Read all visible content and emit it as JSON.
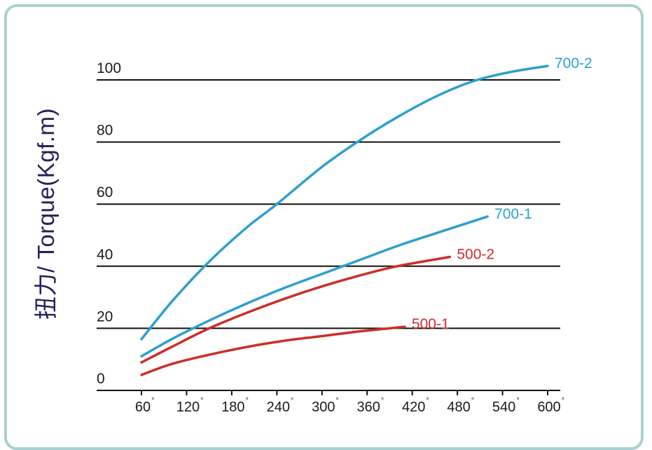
{
  "chart_data": {
    "type": "line",
    "ylabel": "扭力/ Torque(Kgf.m)",
    "xlabel": "",
    "degree_mark": "°",
    "xlim": [
      60,
      600
    ],
    "ylim": [
      0,
      100
    ],
    "x_ticks": [
      "60",
      "120",
      "180",
      "240",
      "300",
      "360",
      "420",
      "480",
      "540",
      "600"
    ],
    "y_ticks": [
      "0",
      "20",
      "40",
      "60",
      "80",
      "100"
    ],
    "grid": "horizontal",
    "series": [
      {
        "name": "700-2",
        "color": "#2e9fd0",
        "x": [
          60,
          100,
          150,
          200,
          240,
          300,
          350,
          400,
          450,
          500,
          550,
          600
        ],
        "y": [
          16.5,
          28.5,
          41.5,
          52.5,
          60,
          72,
          80.5,
          88,
          94.5,
          99.5,
          102.5,
          104.5
        ]
      },
      {
        "name": "700-1",
        "color": "#2e9fd0",
        "x": [
          60,
          100,
          150,
          200,
          250,
          300,
          350,
          400,
          450,
          520
        ],
        "y": [
          11,
          16.5,
          22.5,
          28,
          33,
          37.5,
          42,
          46.5,
          50.5,
          56
        ]
      },
      {
        "name": "500-2",
        "color": "#cc2e2a",
        "x": [
          60,
          100,
          150,
          200,
          250,
          300,
          350,
          400,
          470
        ],
        "y": [
          9,
          14,
          20,
          25,
          29.5,
          33.5,
          37,
          40,
          43
        ]
      },
      {
        "name": "500-1",
        "color": "#cc2e2a",
        "x": [
          60,
          100,
          150,
          200,
          250,
          300,
          350,
          410
        ],
        "y": [
          5,
          8.5,
          11.5,
          14,
          16,
          17.5,
          19,
          20.5
        ]
      }
    ]
  }
}
